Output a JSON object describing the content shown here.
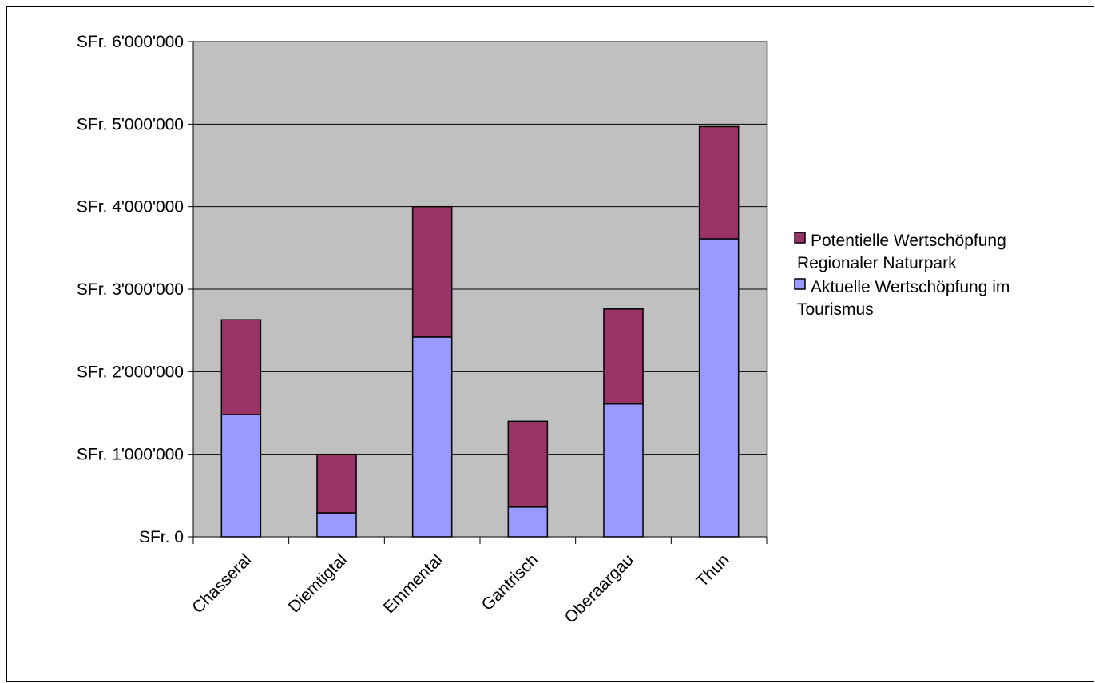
{
  "chart_data": {
    "type": "bar",
    "stacked": true,
    "categories": [
      "Chasseral",
      "Diemtigtal",
      "Emmental",
      "Gantrisch",
      "Oberaargau",
      "Thun"
    ],
    "series": [
      {
        "name": "Aktuelle Wertschöpfung im Tourismus",
        "color": "#9999ff",
        "values": [
          1480000,
          290000,
          2420000,
          360000,
          1610000,
          3610000
        ]
      },
      {
        "name": "Potentielle Wertschöpfung Regionaler Naturpark",
        "color": "#993366",
        "values": [
          1150000,
          710000,
          1580000,
          1040000,
          1150000,
          1360000
        ]
      }
    ],
    "ylim": [
      0,
      6000000
    ],
    "yticks": [
      0,
      1000000,
      2000000,
      3000000,
      4000000,
      5000000,
      6000000
    ],
    "ytick_labels": [
      "SFr. 0",
      "SFr. 1'000'000",
      "SFr. 2'000'000",
      "SFr. 3'000'000",
      "SFr. 4'000'000",
      "SFr. 5'000'000",
      "SFr. 6'000'000"
    ],
    "plot_background": "#c0c0c0",
    "grid": true,
    "legend_position": "right",
    "legend": [
      {
        "name": "Potentielle Wertschöpfung Regionaler Naturpark",
        "lines": [
          "Potentielle Wertschöpfung",
          "Regionaler Naturpark"
        ],
        "color": "#993366"
      },
      {
        "name": "Aktuelle Wertschöpfung im Tourismus",
        "lines": [
          "Aktuelle Wertschöpfung im",
          "Tourismus"
        ],
        "color": "#9999ff"
      }
    ]
  }
}
